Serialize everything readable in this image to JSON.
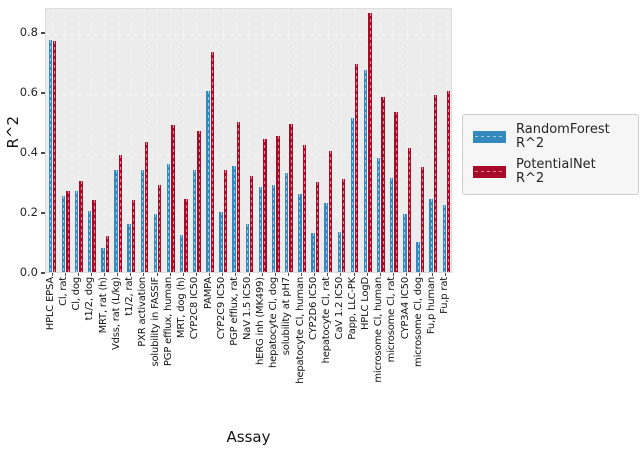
{
  "chart_data": {
    "type": "bar",
    "title": "",
    "xlabel": "Assay",
    "ylabel": "R^2",
    "ylim": [
      0,
      0.883
    ],
    "yticks": [
      0.0,
      0.2,
      0.4,
      0.6,
      0.8
    ],
    "ytick_labels": [
      "0.0",
      "0.2",
      "0.4",
      "0.6",
      "0.8"
    ],
    "grid": "dashed light gridlines (x and y) on light-gray axes background",
    "legend_position": "right of axes, vertically centered",
    "categories": [
      "HPLC EPSA",
      "Cl, rat",
      "Cl, dog",
      "t1/2, dog",
      "MRT, rat (h)",
      "Vdss, rat (L/kg)",
      "t1/2, rat",
      "PXR activation",
      "solubility in FASSIF",
      "PGP efflux, human",
      "MRT, dog (h)",
      "CYP2C8 IC50",
      "PAMPA",
      "CYP2C9 IC50",
      "PGP efflux, rat",
      "NaV 1.5 IC50",
      "hERG inh (MK499)",
      "hepatocyte Cl, dog",
      "solubility at pH7",
      "hepatocyte Cl, human",
      "CYP2D6 IC50",
      "hepatocyte Cl, rat",
      "CaV 1.2 IC50",
      "Papp, LLC-PK",
      "HPLC LogD",
      "microsome Cl, human",
      "microsome Cl, rat",
      "CYP3A4 IC50",
      "microsome Cl, dog",
      "Fu,p human",
      "Fu,p rat"
    ],
    "series": [
      {
        "name": "RandomForest R^2",
        "color": "#348ABD",
        "values": [
          0.775,
          0.255,
          0.27,
          0.205,
          0.08,
          0.34,
          0.16,
          0.34,
          0.195,
          0.36,
          0.125,
          0.34,
          0.605,
          0.2,
          0.355,
          0.16,
          0.285,
          0.29,
          0.33,
          0.26,
          0.13,
          0.23,
          0.135,
          0.515,
          0.675,
          0.38,
          0.315,
          0.195,
          0.1,
          0.245,
          0.225
        ]
      },
      {
        "name": "PotentialNet R^2",
        "color": "#A90A28",
        "values": [
          0.77,
          0.27,
          0.305,
          0.24,
          0.12,
          0.39,
          0.24,
          0.435,
          0.29,
          0.49,
          0.245,
          0.47,
          0.735,
          0.34,
          0.5,
          0.32,
          0.445,
          0.455,
          0.495,
          0.425,
          0.3,
          0.405,
          0.31,
          0.695,
          0.865,
          0.585,
          0.535,
          0.415,
          0.35,
          0.59,
          0.605
        ]
      }
    ]
  },
  "colors": {
    "figure_bg": "#ffffff",
    "plot_bg": "#ececec",
    "gridline": "#fbfbfb",
    "tick_text": "#262626",
    "legend_bg": "#f6f6f6",
    "legend_border": "#cccccc"
  }
}
